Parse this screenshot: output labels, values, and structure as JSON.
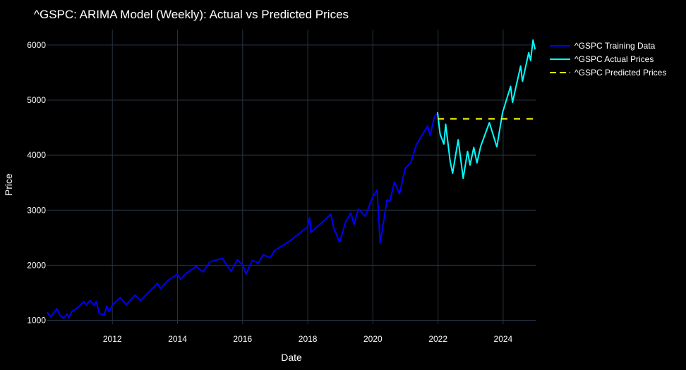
{
  "chart_data": {
    "type": "line",
    "title": "^GSPC: ARIMA Model (Weekly): Actual vs Predicted Prices",
    "xlabel": "Date",
    "ylabel": "Price",
    "xlim": [
      "2010-01-01",
      "2024-12-31"
    ],
    "ylim": [
      930,
      6280
    ],
    "x_ticks": [
      {
        "label": "2012",
        "date": "2012-01-01"
      },
      {
        "label": "2014",
        "date": "2014-01-01"
      },
      {
        "label": "2016",
        "date": "2016-01-01"
      },
      {
        "label": "2018",
        "date": "2018-01-01"
      },
      {
        "label": "2020",
        "date": "2020-01-01"
      },
      {
        "label": "2022",
        "date": "2022-01-01"
      },
      {
        "label": "2024",
        "date": "2024-01-01"
      }
    ],
    "y_ticks": [
      1000,
      2000,
      3000,
      4000,
      5000,
      6000
    ],
    "grid": true,
    "legend_position": "top-right",
    "series": [
      {
        "name": "^GSPC Training Data",
        "color": "#0000ff",
        "dash": "solid",
        "points": [
          [
            "2010-01-04",
            1140
          ],
          [
            "2010-02-08",
            1065
          ],
          [
            "2010-04-19",
            1210
          ],
          [
            "2010-05-24",
            1090
          ],
          [
            "2010-07-05",
            1040
          ],
          [
            "2010-08-09",
            1120
          ],
          [
            "2010-08-30",
            1050
          ],
          [
            "2010-10-04",
            1160
          ],
          [
            "2010-12-27",
            1255
          ],
          [
            "2011-02-14",
            1340
          ],
          [
            "2011-03-14",
            1280
          ],
          [
            "2011-04-25",
            1360
          ],
          [
            "2011-06-13",
            1270
          ],
          [
            "2011-07-04",
            1345
          ],
          [
            "2011-08-08",
            1120
          ],
          [
            "2011-10-03",
            1100
          ],
          [
            "2011-10-31",
            1260
          ],
          [
            "2011-11-28",
            1160
          ],
          [
            "2012-01-02",
            1280
          ],
          [
            "2012-04-02",
            1415
          ],
          [
            "2012-06-04",
            1280
          ],
          [
            "2012-09-10",
            1460
          ],
          [
            "2012-11-12",
            1360
          ],
          [
            "2012-12-31",
            1440
          ],
          [
            "2013-05-20",
            1670
          ],
          [
            "2013-06-24",
            1580
          ],
          [
            "2013-09-16",
            1725
          ],
          [
            "2013-12-30",
            1840
          ],
          [
            "2014-02-03",
            1745
          ],
          [
            "2014-04-14",
            1860
          ],
          [
            "2014-07-28",
            1980
          ],
          [
            "2014-10-13",
            1880
          ],
          [
            "2014-12-29",
            2060
          ],
          [
            "2015-05-18",
            2125
          ],
          [
            "2015-08-24",
            1890
          ],
          [
            "2015-11-02",
            2100
          ],
          [
            "2016-01-04",
            2000
          ],
          [
            "2016-02-08",
            1840
          ],
          [
            "2016-04-18",
            2090
          ],
          [
            "2016-06-27",
            2040
          ],
          [
            "2016-08-15",
            2190
          ],
          [
            "2016-11-07",
            2140
          ],
          [
            "2016-12-26",
            2270
          ],
          [
            "2017-06-12",
            2440
          ],
          [
            "2017-12-25",
            2690
          ],
          [
            "2018-01-22",
            2860
          ],
          [
            "2018-02-05",
            2600
          ],
          [
            "2018-06-04",
            2770
          ],
          [
            "2018-09-17",
            2930
          ],
          [
            "2018-10-22",
            2660
          ],
          [
            "2018-12-24",
            2420
          ],
          [
            "2019-03-04",
            2800
          ],
          [
            "2019-04-29",
            2950
          ],
          [
            "2019-06-03",
            2740
          ],
          [
            "2019-07-22",
            3020
          ],
          [
            "2019-10-07",
            2890
          ],
          [
            "2019-12-30",
            3240
          ],
          [
            "2020-02-17",
            3370
          ],
          [
            "2020-03-09",
            2800
          ],
          [
            "2020-03-23",
            2400
          ],
          [
            "2020-06-08",
            3190
          ],
          [
            "2020-07-06",
            3150
          ],
          [
            "2020-08-31",
            3510
          ],
          [
            "2020-10-26",
            3300
          ],
          [
            "2020-12-28",
            3760
          ],
          [
            "2021-03-01",
            3860
          ],
          [
            "2021-05-03",
            4190
          ],
          [
            "2021-09-06",
            4530
          ],
          [
            "2021-10-04",
            4360
          ],
          [
            "2021-11-22",
            4700
          ],
          [
            "2021-12-27",
            4770
          ]
        ]
      },
      {
        "name": "^GSPC Actual Prices",
        "color": "#00ffff",
        "dash": "solid",
        "points": [
          [
            "2021-12-27",
            4770
          ],
          [
            "2022-01-24",
            4380
          ],
          [
            "2022-03-07",
            4200
          ],
          [
            "2022-03-28",
            4560
          ],
          [
            "2022-05-16",
            3900
          ],
          [
            "2022-06-13",
            3670
          ],
          [
            "2022-08-15",
            4280
          ],
          [
            "2022-10-10",
            3580
          ],
          [
            "2022-11-28",
            4070
          ],
          [
            "2022-12-26",
            3820
          ],
          [
            "2023-02-06",
            4140
          ],
          [
            "2023-03-13",
            3860
          ],
          [
            "2023-04-24",
            4160
          ],
          [
            "2023-07-31",
            4590
          ],
          [
            "2023-10-23",
            4150
          ],
          [
            "2023-12-25",
            4770
          ],
          [
            "2024-03-25",
            5250
          ],
          [
            "2024-04-15",
            4960
          ],
          [
            "2024-07-15",
            5620
          ],
          [
            "2024-08-05",
            5340
          ],
          [
            "2024-10-14",
            5860
          ],
          [
            "2024-11-04",
            5720
          ],
          [
            "2024-12-02",
            6090
          ],
          [
            "2024-12-23",
            5930
          ]
        ]
      },
      {
        "name": "^GSPC Predicted Prices",
        "color": "#ffff00",
        "dash": "dashed",
        "points": [
          [
            "2021-12-27",
            4660
          ],
          [
            "2024-12-23",
            4660
          ]
        ]
      }
    ]
  }
}
